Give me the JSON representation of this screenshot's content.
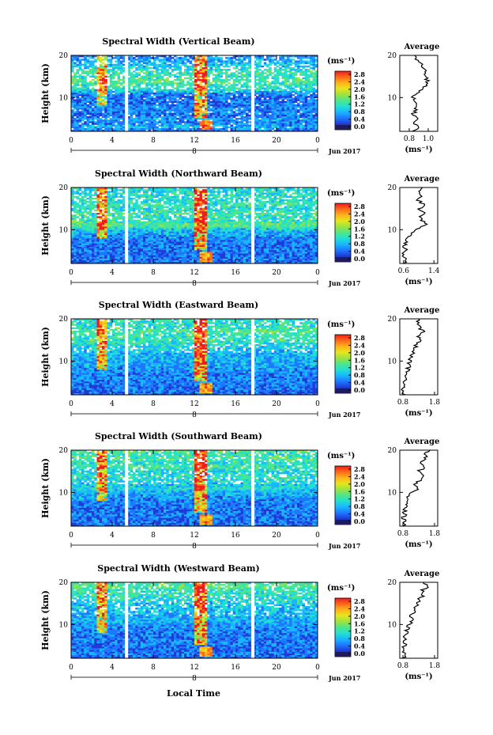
{
  "figure": {
    "xlabel": "Local Time",
    "date_label": "Jun 2017",
    "day_label": "8",
    "colorbar_unit": "(ms⁻¹)",
    "average_title": "Average",
    "average_xlabel": "(ms⁻¹)",
    "ylabel": "Height (km)",
    "colorbar_ticks": [
      "0.0",
      "0.4",
      "0.8",
      "1.2",
      "1.6",
      "2.0",
      "2.4",
      "2.8"
    ],
    "colors": [
      "#1e1a5c",
      "#1f3bd6",
      "#1d78ff",
      "#18b6ff",
      "#22e0d0",
      "#4ee68a",
      "#9be33f",
      "#e6e61c",
      "#ffb21a",
      "#ff6a1a",
      "#ee1c1c"
    ]
  },
  "chart_data": [
    {
      "type": "heatmap",
      "title": "Spectral Width (Vertical Beam)",
      "x_ticks": [
        "0",
        "4",
        "8",
        "12",
        "16",
        "20",
        "0"
      ],
      "xlim": [
        0,
        24
      ],
      "y_ticks": [
        "20",
        "10"
      ],
      "ylim": [
        2,
        20
      ],
      "value_range": [
        0.0,
        2.8
      ],
      "data_gaps_hours": [
        5.4,
        17.7
      ],
      "average_profile": {
        "x_ticks": [
          "0.8",
          "1.0"
        ],
        "xlim": [
          0.7,
          1.1
        ],
        "height_km": [
          2,
          3,
          4,
          5,
          6,
          7,
          8,
          9,
          10,
          11,
          12,
          13,
          14,
          15,
          16,
          17,
          18,
          19,
          20
        ],
        "width_ms": [
          0.84,
          0.9,
          0.86,
          0.88,
          0.84,
          0.87,
          0.86,
          0.85,
          0.84,
          0.87,
          0.95,
          0.97,
          1.0,
          0.96,
          0.98,
          0.93,
          0.92,
          0.88,
          0.86
        ]
      }
    },
    {
      "type": "heatmap",
      "title": "Spectral Width (Northward Beam)",
      "x_ticks": [
        "0",
        "4",
        "8",
        "12",
        "16",
        "20",
        "0"
      ],
      "xlim": [
        0,
        24
      ],
      "y_ticks": [
        "20",
        "10"
      ],
      "ylim": [
        2,
        20
      ],
      "value_range": [
        0.0,
        2.8
      ],
      "data_gaps_hours": [
        5.4,
        17.7
      ],
      "average_profile": {
        "x_ticks": [
          "0.6",
          "1.4"
        ],
        "xlim": [
          0.5,
          1.5
        ],
        "height_km": [
          2,
          3,
          4,
          5,
          6,
          7,
          8,
          9,
          10,
          11,
          12,
          13,
          14,
          15,
          16,
          17,
          18,
          19,
          20
        ],
        "width_ms": [
          0.62,
          0.64,
          0.6,
          0.66,
          0.63,
          0.65,
          0.7,
          0.78,
          0.9,
          1.2,
          1.1,
          1.05,
          1.15,
          1.02,
          1.12,
          1.0,
          1.08,
          0.98,
          1.05
        ]
      }
    },
    {
      "type": "heatmap",
      "title": "Spectral Width (Eastward Beam)",
      "x_ticks": [
        "0",
        "4",
        "8",
        "12",
        "16",
        "20",
        "0"
      ],
      "xlim": [
        0,
        24
      ],
      "y_ticks": [
        "20",
        "10"
      ],
      "ylim": [
        2,
        20
      ],
      "value_range": [
        0.0,
        2.8
      ],
      "data_gaps_hours": [
        5.4,
        17.7
      ],
      "average_profile": {
        "x_ticks": [
          "0.8",
          "1.8"
        ],
        "xlim": [
          0.7,
          1.9
        ],
        "height_km": [
          2,
          3,
          4,
          5,
          6,
          7,
          8,
          9,
          10,
          11,
          12,
          13,
          14,
          15,
          16,
          17,
          18,
          19,
          20
        ],
        "width_ms": [
          0.82,
          0.8,
          0.84,
          0.86,
          0.88,
          0.9,
          0.95,
          1.0,
          1.02,
          1.05,
          1.1,
          1.15,
          1.25,
          1.35,
          1.3,
          1.45,
          1.3,
          1.25,
          1.3
        ]
      }
    },
    {
      "type": "heatmap",
      "title": "Spectral Width (Southward Beam)",
      "x_ticks": [
        "0",
        "4",
        "8",
        "12",
        "16",
        "20",
        "0"
      ],
      "xlim": [
        0,
        24
      ],
      "y_ticks": [
        "20",
        "10"
      ],
      "ylim": [
        2,
        20
      ],
      "value_range": [
        0.0,
        2.8
      ],
      "data_gaps_hours": [
        5.4,
        17.7
      ],
      "average_profile": {
        "x_ticks": [
          "0.8",
          "1.8"
        ],
        "xlim": [
          0.7,
          1.9
        ],
        "height_km": [
          2,
          3,
          4,
          5,
          6,
          7,
          8,
          9,
          10,
          11,
          12,
          13,
          14,
          15,
          16,
          17,
          18,
          19,
          20
        ],
        "width_ms": [
          0.8,
          0.84,
          0.82,
          0.86,
          0.85,
          0.88,
          0.92,
          1.0,
          1.1,
          1.3,
          1.2,
          1.35,
          1.45,
          1.3,
          1.5,
          1.4,
          1.55,
          1.45,
          1.6
        ]
      }
    },
    {
      "type": "heatmap",
      "title": "Spectral Width (Westward Beam)",
      "x_ticks": [
        "0",
        "4",
        "8",
        "12",
        "16",
        "20",
        "0"
      ],
      "xlim": [
        0,
        24
      ],
      "y_ticks": [
        "20",
        "10"
      ],
      "ylim": [
        2,
        20
      ],
      "value_range": [
        0.0,
        2.8
      ],
      "data_gaps_hours": [
        5.4,
        17.7
      ],
      "average_profile": {
        "x_ticks": [
          "0.8",
          "1.8"
        ],
        "xlim": [
          0.7,
          1.9
        ],
        "height_km": [
          2,
          3,
          4,
          5,
          6,
          7,
          8,
          9,
          10,
          11,
          12,
          13,
          14,
          15,
          16,
          17,
          18,
          19,
          20
        ],
        "width_ms": [
          0.8,
          0.86,
          0.82,
          0.84,
          0.88,
          0.86,
          0.9,
          0.94,
          1.0,
          1.1,
          1.05,
          1.15,
          1.2,
          1.25,
          1.3,
          1.45,
          1.4,
          1.6,
          1.5
        ]
      }
    }
  ]
}
